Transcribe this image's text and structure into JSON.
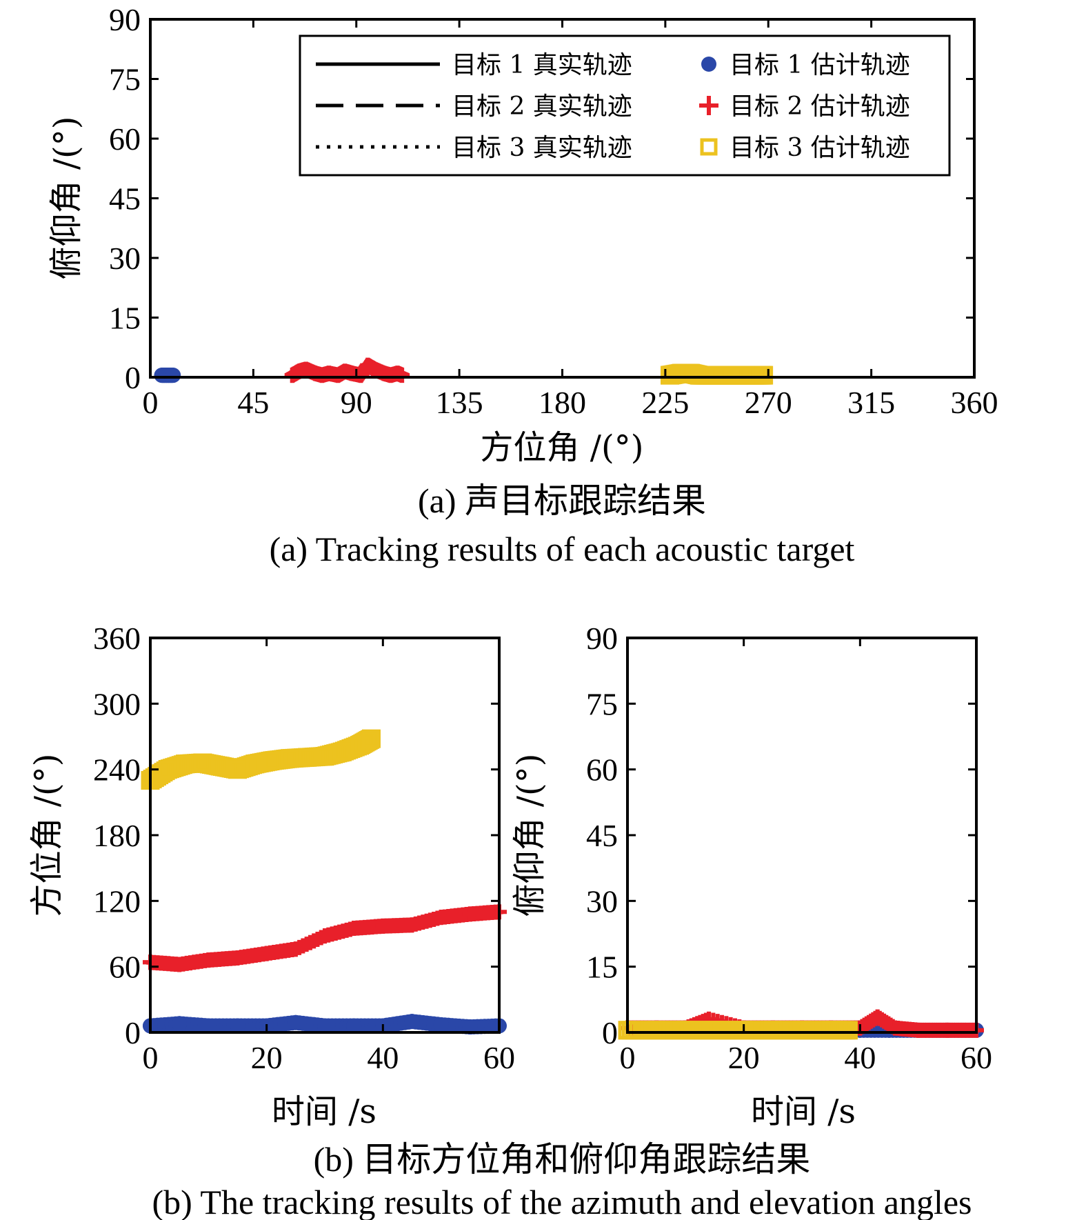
{
  "colors": {
    "target1_est": "#2a47a8",
    "target2_est": "#e8202a",
    "target3_est": "#ecc21f",
    "true_track": "#000000"
  },
  "captions": {
    "a_cn": "(a) 声目标跟踪结果",
    "a_en": "(a) Tracking results of each acoustic target",
    "b_cn": "(b) 目标方位角和俯仰角跟踪结果",
    "b_en": "(b) The tracking results of the azimuth and elevation angles"
  },
  "chart_data": [
    {
      "id": "a",
      "type": "scatter",
      "xlabel": "方位角 /(°)",
      "ylabel": "俯仰角 /(°)",
      "xlim": [
        0,
        360
      ],
      "ylim": [
        0,
        90
      ],
      "xticks": [
        "0",
        "45",
        "90",
        "135",
        "180",
        "225",
        "270",
        "315",
        "360"
      ],
      "yticks": [
        "0",
        "15",
        "30",
        "45",
        "60",
        "75",
        "90"
      ],
      "legend": {
        "placement": "top-right",
        "entries": [
          {
            "label": "目标 1 真实轨迹",
            "style": "solid-line"
          },
          {
            "label": "目标 2 真实轨迹",
            "style": "dashed-line"
          },
          {
            "label": "目标 3 真实轨迹",
            "style": "dotted-line"
          },
          {
            "label": "目标 1 估计轨迹",
            "style": "circle",
            "color": "#2a47a8"
          },
          {
            "label": "目标 2 估计轨迹",
            "style": "plus",
            "color": "#e8202a"
          },
          {
            "label": "目标 3 估计轨迹",
            "style": "square",
            "color": "#ecc21f"
          }
        ]
      },
      "series": [
        {
          "name": "目标 1 估计轨迹",
          "x": [
            5,
            6,
            7,
            8,
            9,
            10
          ],
          "y": [
            0.5,
            0.5,
            0.5,
            0.5,
            0.5,
            0.5
          ]
        },
        {
          "name": "目标 2 估计轨迹",
          "x": [
            62,
            65,
            68,
            72,
            75,
            78,
            82,
            85,
            88,
            92,
            95,
            98,
            102,
            105,
            108,
            110
          ],
          "y": [
            0.5,
            1.5,
            2,
            1,
            0.5,
            1,
            0.5,
            1.5,
            1,
            0.5,
            3,
            2,
            1,
            0.5,
            1,
            0.5
          ]
        },
        {
          "name": "目标 3 估计轨迹",
          "x": [
            227,
            232,
            236,
            240,
            244,
            248,
            252,
            256,
            260,
            264,
            268
          ],
          "y": [
            0.5,
            1,
            1,
            0.5,
            0.5,
            0.5,
            0.5,
            0.5,
            0.5,
            0.5,
            0.5
          ]
        }
      ]
    },
    {
      "id": "b_azimuth",
      "type": "scatter",
      "xlabel": "时间 /s",
      "ylabel": "方位角 /(°)",
      "xlim": [
        0,
        60
      ],
      "ylim": [
        0,
        360
      ],
      "xticks": [
        "0",
        "20",
        "40",
        "60"
      ],
      "yticks": [
        "0",
        "60",
        "120",
        "180",
        "240",
        "300",
        "360"
      ],
      "series": [
        {
          "name": "目标 1 估计轨迹",
          "x": [
            0,
            5,
            10,
            15,
            20,
            25,
            30,
            35,
            40,
            45,
            50,
            55,
            60
          ],
          "y": [
            6,
            8,
            6,
            6,
            6,
            9,
            6,
            6,
            6,
            10,
            7,
            5,
            6
          ]
        },
        {
          "name": "目标 2 估计轨迹",
          "x": [
            0,
            5,
            10,
            15,
            20,
            25,
            30,
            35,
            40,
            45,
            50,
            55,
            60
          ],
          "y": [
            64,
            62,
            66,
            68,
            72,
            76,
            88,
            95,
            97,
            98,
            105,
            108,
            110
          ]
        },
        {
          "name": "目标 3 估计轨迹",
          "x": [
            0,
            3,
            6,
            9,
            12,
            15,
            18,
            21,
            24,
            27,
            30,
            33,
            36,
            38
          ],
          "y": [
            230,
            240,
            245,
            246,
            243,
            240,
            245,
            248,
            250,
            251,
            252,
            256,
            262,
            268
          ]
        }
      ]
    },
    {
      "id": "b_elevation",
      "type": "scatter",
      "xlabel": "时间 /s",
      "ylabel": "俯仰角 /(°)",
      "xlim": [
        0,
        60
      ],
      "ylim": [
        0,
        90
      ],
      "xticks": [
        "0",
        "20",
        "40",
        "60"
      ],
      "yticks": [
        "0",
        "15",
        "30",
        "45",
        "60",
        "75",
        "90"
      ],
      "series": [
        {
          "name": "目标 1 估计轨迹",
          "x": [
            40,
            45,
            50,
            55,
            60
          ],
          "y": [
            0.5,
            0.5,
            0.5,
            0.5,
            0.5
          ]
        },
        {
          "name": "目标 2 估计轨迹",
          "x": [
            0,
            5,
            10,
            14,
            20,
            25,
            30,
            35,
            40,
            43,
            46,
            50,
            55,
            60
          ],
          "y": [
            1,
            1,
            1,
            3,
            1,
            1,
            1,
            1,
            1,
            3.5,
            1,
            0.5,
            0.5,
            0.5
          ]
        },
        {
          "name": "目标 3 估计轨迹",
          "x": [
            0,
            5,
            10,
            15,
            20,
            25,
            30,
            35,
            38
          ],
          "y": [
            0.5,
            0.5,
            0.5,
            0.5,
            0.5,
            0.5,
            0.5,
            0.5,
            0.5
          ]
        }
      ]
    }
  ]
}
